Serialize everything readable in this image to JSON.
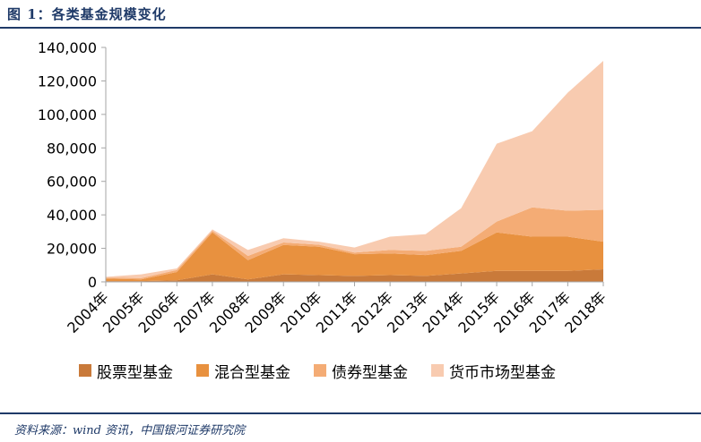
{
  "figure": {
    "title": "图 1：各类基金规模变化",
    "source": "资料来源：wind 资讯，中国银河证券研究院"
  },
  "colors": {
    "header": "#1f3a68",
    "axis": "#a6a6a6"
  },
  "chart_data": {
    "type": "area",
    "stacked": true,
    "categories": [
      "2004年",
      "2005年",
      "2006年",
      "2007年",
      "2008年",
      "2009年",
      "2010年",
      "2011年",
      "2012年",
      "2013年",
      "2014年",
      "2015年",
      "2016年",
      "2017年",
      "2018年"
    ],
    "ylim": [
      0,
      140000
    ],
    "yticks": [
      0,
      20000,
      40000,
      60000,
      80000,
      100000,
      120000,
      140000
    ],
    "ytick_labels": [
      "0",
      "20,000",
      "40,000",
      "60,000",
      "80,000",
      "100,000",
      "120,000",
      "140,000"
    ],
    "grid": false,
    "legend_position": "bottom",
    "series": [
      {
        "name": "股票型基金",
        "color": "#c97a3a",
        "values": [
          500,
          500,
          900,
          4500,
          1500,
          4500,
          4000,
          3500,
          4000,
          3500,
          5000,
          6500,
          6500,
          6500,
          7500
        ]
      },
      {
        "name": "混合型基金",
        "color": "#e8913f",
        "values": [
          1500,
          1000,
          5000,
          25000,
          11500,
          17500,
          17000,
          13000,
          13000,
          12500,
          13500,
          23000,
          20500,
          20500,
          16500
        ]
      },
      {
        "name": "债券型基金",
        "color": "#f4ac75",
        "values": [
          500,
          800,
          1200,
          1000,
          2500,
          1500,
          1200,
          1000,
          2000,
          2500,
          2500,
          6500,
          17500,
          15500,
          19000
        ]
      },
      {
        "name": "货币市场型基金",
        "color": "#f8cbb0",
        "values": [
          500,
          2200,
          900,
          800,
          3500,
          2500,
          1800,
          3000,
          8000,
          10000,
          23000,
          46500,
          45500,
          70500,
          89000
        ]
      }
    ]
  }
}
